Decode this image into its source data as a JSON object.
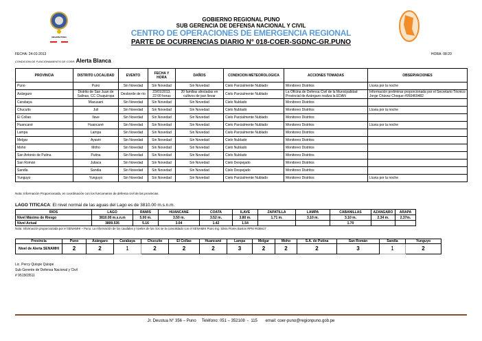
{
  "header": {
    "logo_left_text": "REGION PUNO",
    "line1": "GOBIERNO REGIONAL PUNO",
    "line2": "SUB GERENCIA DE DEFENSA NACIONAL Y CIVIL",
    "line3": "CENTRO DE OPERACIONES DE EMERGENCIA REGIONAL",
    "title": "PARTE DE OCURRENCIAS DIARIO N° 018-COER-SGDNC-GR.PUNO",
    "accent": "#5b9bd5"
  },
  "meta": {
    "fecha": "FECHA: 24-01-2013",
    "hora": "HORA: 08:20",
    "condicion_label": "CONDICION DE FUNCIONAMIENTO DE COER:",
    "condicion_value": "Alerta Blanca"
  },
  "main_table": {
    "headers": [
      "PROVINCIA",
      "DISTRITO LOCALIDAD",
      "EVENTO",
      "FECHA Y HORA",
      "DAÑOS",
      "CONDICION METEOROLOGICA",
      "ACCIONES TOMADAS",
      "OBSERVACIONES"
    ],
    "rows": [
      [
        "Puno",
        "Puno",
        "Sin Novedad",
        "Sin Novedad",
        "Sin Novedad",
        "Cielo Parcialmente Nublado",
        "Monitoreo Distritos",
        "Lluvia por la noche"
      ],
      [
        "Azángaro",
        "Distrito de San Juan de Salinas, CC Chuquiropa",
        "Desborde de río",
        "23/01/2013, 22:00 horas",
        "20 familias afectadas en cultivos de pan llevar",
        "Cielo Parcialmente Nublado",
        "La Oficina de Defensa Civil de la Municipalidad Provincial de Azángaro realiza la EDAN",
        "Información preliminar proporcionada por el Secretario Técnico Jorge Chávez Choque #950469482"
      ],
      [
        "Carabaya",
        "Macusani",
        "Sin Novedad",
        "Sin Novedad",
        "Sin Novedad",
        "Cielo Nublado",
        "Monitoreo Distritos",
        ""
      ],
      [
        "Chucuito",
        "Juli",
        "Sin Novedad",
        "Sin Novedad",
        "Sin Novedad",
        "Cielo Nublado",
        "Monitoreo Distritos",
        "Lluvia por la noche"
      ],
      [
        "El Collao",
        "Ilave",
        "Sin Novedad",
        "Sin Novedad",
        "Sin Novedad",
        "Cielo Parcialmente Nublado",
        "Monitoreo Distritos",
        ""
      ],
      [
        "Huancané",
        "Huancané",
        "Sin Novedad",
        "Sin Novedad",
        "Sin Novedad",
        "Cielo Parcialmente Nublado",
        "Monitoreo Distritos",
        "Lluvia por la noche"
      ],
      [
        "Lampa",
        "Lampa",
        "Sin Novedad",
        "Sin Novedad",
        "Sin Novedad",
        "Cielo Parcialmente Nublado",
        "Monitoreo Distritos",
        ""
      ],
      [
        "Melgar",
        "Ayaviri",
        "Sin Novedad",
        "Sin Novedad",
        "Sin Novedad",
        "Cielo Nublado",
        "Monitoreo Distritos",
        ""
      ],
      [
        "Moho",
        "Moho",
        "Sin Novedad",
        "Sin Novedad",
        "Sin Novedad",
        "Cielo Nublado",
        "Monitoreo Distritos",
        ""
      ],
      [
        "San Antonio de Putina",
        "Putina",
        "Sin Novedad",
        "Sin Novedad",
        "Sin Novedad",
        "Cielo Nublado",
        "Monitoreo Distritos",
        ""
      ],
      [
        "San Román",
        "Juliaca",
        "Sin Novedad",
        "Sin Novedad",
        "Sin Novedad",
        "Cielo Despejado",
        "Monitoreo Distritos",
        ""
      ],
      [
        "Sandia",
        "Sandia",
        "Sin Novedad",
        "Sin Novedad",
        "Sin Novedad",
        "Cielo Despejado",
        "Monitoreo Distritos",
        ""
      ],
      [
        "Yunguyo",
        "Yunguyo",
        "Sin Novedad",
        "Sin Novedad",
        "Sin Novedad",
        "Cielo Parcialmente Nublado",
        "Monitoreo Distritos",
        "Lluvia por la noche"
      ]
    ],
    "note": "Nota: Información Proporcionada, en coordinación con los funcionarios de defensa civil de las provincias."
  },
  "lake": {
    "title_bold": "LAGO TITICACA",
    "title_rest": ": El nivel normal de las aguas del Lago es de 3810.00 m.s.n.m.",
    "headers": [
      "RIOS",
      "LAGO",
      "RAMIS",
      "HUANCANE",
      "COATA",
      "ILAVE",
      "ZAPATILLA",
      "LAMPA",
      "CABANILLAS",
      "AZANGARO",
      "ARAPA"
    ],
    "rows": [
      [
        "Nivel Máximo de Riesgo",
        "3810.00 m.s.n.m",
        "5.00 m.",
        "3.50 m.",
        "3.52 m.",
        "3.80 m.",
        "1.71 m.",
        "3.10 m.",
        "3.10 m.",
        "2.34 m.",
        "2.37m."
      ],
      [
        "Nivel Actual",
        "3809.535",
        "5.16",
        "3.04",
        "1.42",
        "1.54",
        "",
        "",
        "1.70",
        "",
        ""
      ]
    ],
    "note": "Nota: Información proporcionada por el SENAMHI – Puno. La información de los caudales y niveles de los ríos se la consolidado con el SENAMHI Puno Ing. Silvia Flores Bustos RPM #636617"
  },
  "alert": {
    "header_label": "Provincia",
    "row_label": "Nivel de Alerta SENAMHI",
    "provinces": [
      "Puno",
      "Azángaro",
      "Carabaya",
      "Chucuito",
      "El Collao",
      "Huancané",
      "Lampa",
      "Melgar",
      "Moho",
      "S.A. de Putina",
      "San Román",
      "Sandia",
      "Yunguyo"
    ],
    "levels": [
      2,
      2,
      1,
      2,
      2,
      2,
      3,
      2,
      2,
      2,
      3,
      1,
      2
    ]
  },
  "signature": {
    "name": "Lic. Percy Quispe Quispe",
    "role": "Sub Gerente de Defensa Nacional y Civil",
    "phone": "# 951503511"
  },
  "footer": {
    "text": "Jr. Deustua N° 356 – Puno     Teléfono: 051 – 352108  -  115       email: coer-puno@regionpuno.gob.pe",
    "line_color": "#8b4a2b"
  }
}
